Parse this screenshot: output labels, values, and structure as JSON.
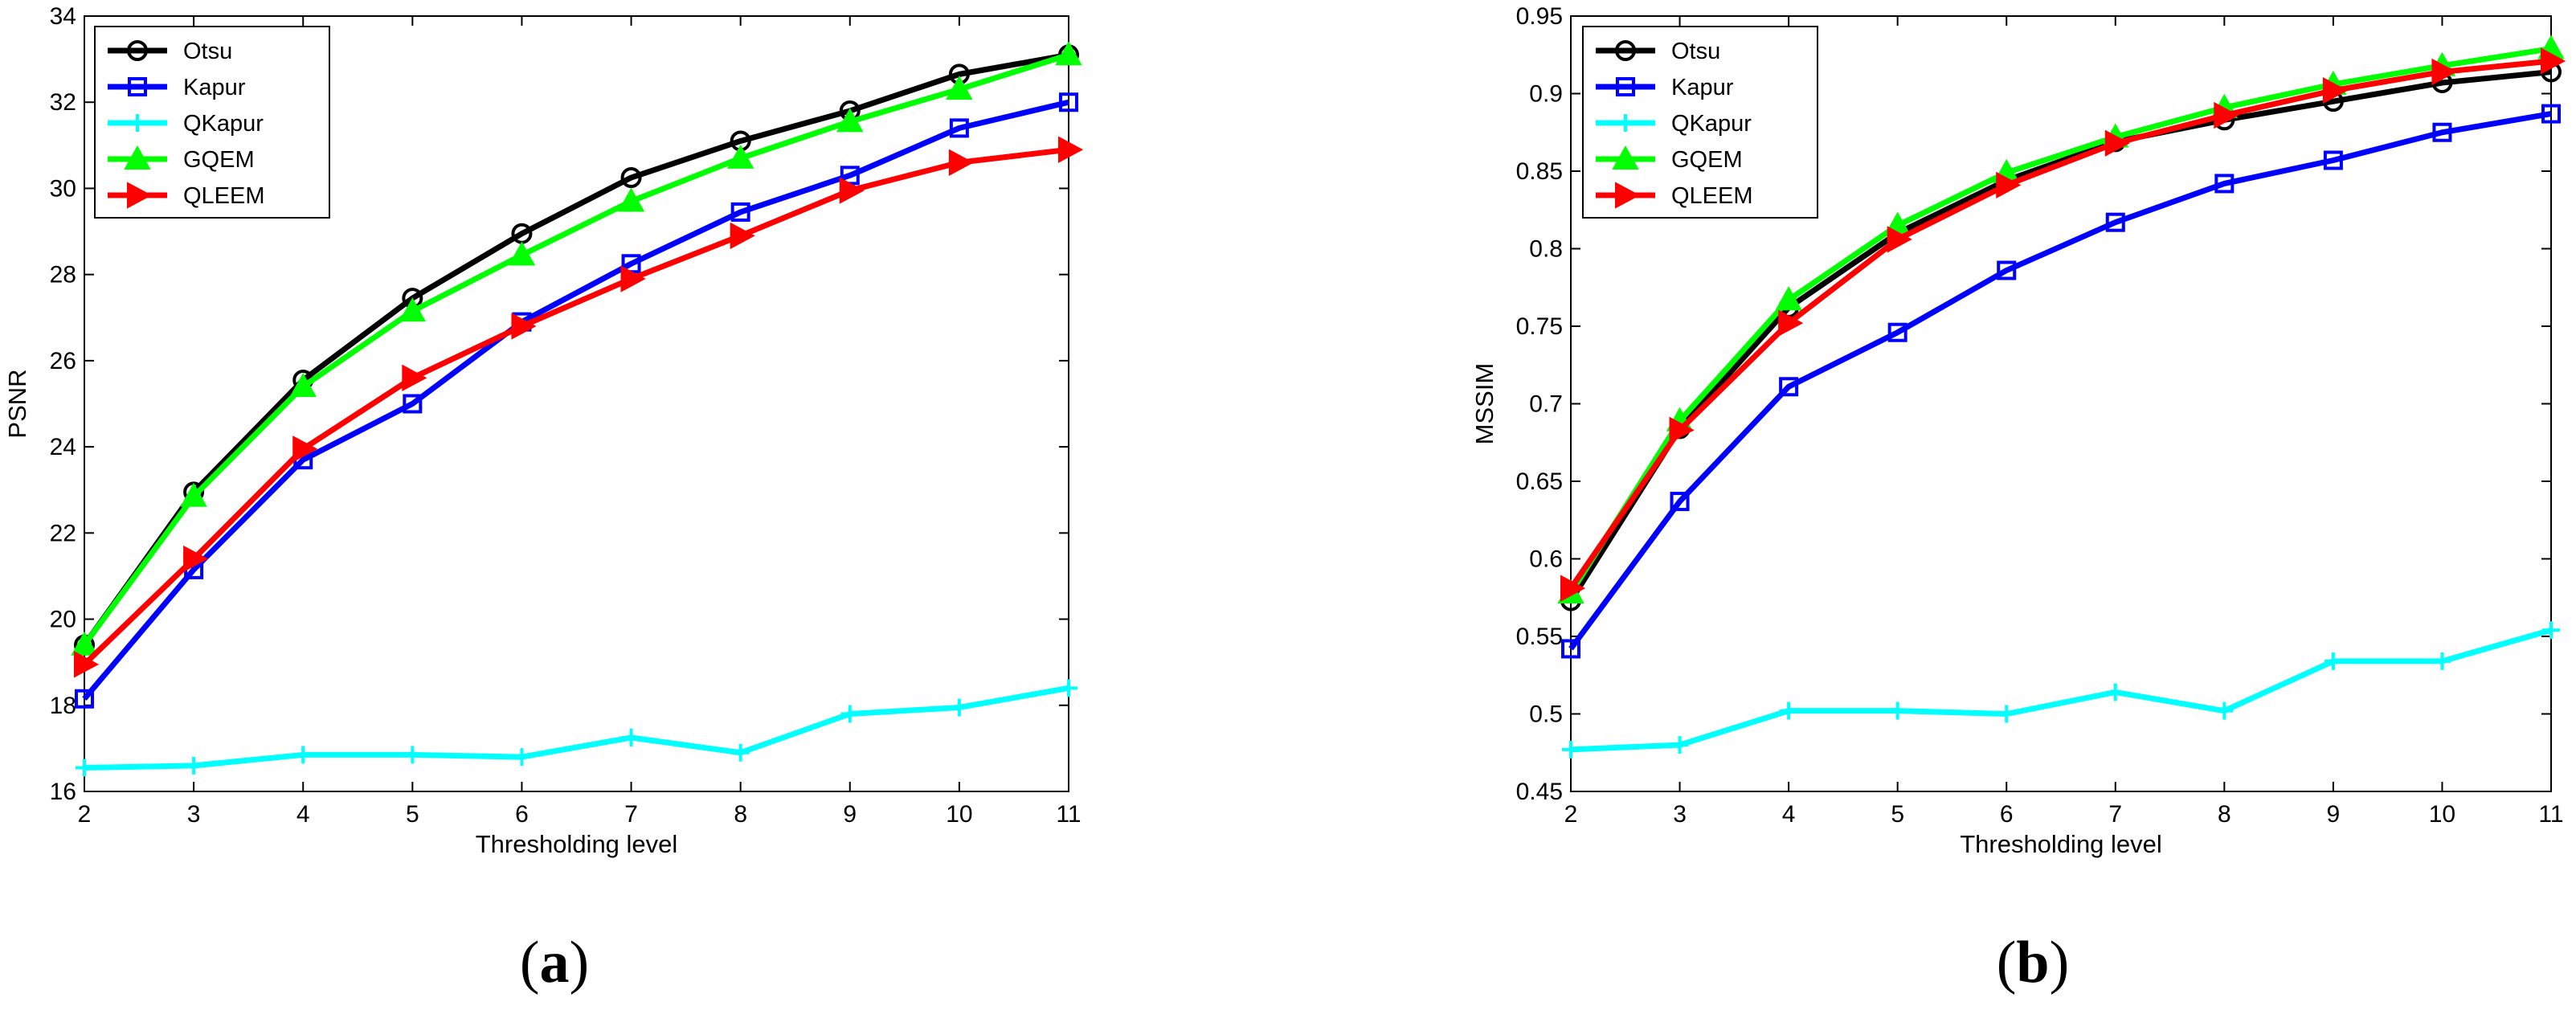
{
  "chart_data": [
    {
      "type": "line",
      "panel_label": "a",
      "xlabel": "Thresholding level",
      "ylabel": "PSNR",
      "x": [
        2,
        3,
        4,
        5,
        6,
        7,
        8,
        9,
        10,
        11
      ],
      "xlim": [
        2,
        11
      ],
      "ylim": [
        16,
        34
      ],
      "xticks": [
        "2",
        "3",
        "4",
        "5",
        "6",
        "7",
        "8",
        "9",
        "10",
        "11"
      ],
      "yticks": [
        "16",
        "18",
        "20",
        "22",
        "24",
        "26",
        "28",
        "30",
        "32",
        "34"
      ],
      "legend_position": "top-left",
      "series": [
        {
          "name": "Otsu",
          "color": "#000000",
          "marker": "circle",
          "values": [
            19.4,
            22.95,
            25.55,
            27.45,
            28.95,
            30.25,
            31.1,
            31.8,
            32.65,
            33.1
          ]
        },
        {
          "name": "Kapur",
          "color": "#0000ff",
          "marker": "square",
          "values": [
            18.15,
            21.15,
            23.7,
            25.0,
            26.9,
            28.25,
            29.45,
            30.3,
            31.4,
            32.0
          ]
        },
        {
          "name": "QKapur",
          "color": "#00ffff",
          "marker": "plus",
          "values": [
            16.55,
            16.6,
            16.85,
            16.85,
            16.8,
            17.25,
            16.9,
            17.8,
            17.95,
            18.4
          ]
        },
        {
          "name": "GQEM",
          "color": "#00ff00",
          "marker": "triangle-up",
          "values": [
            19.4,
            22.85,
            25.4,
            27.15,
            28.45,
            29.7,
            30.7,
            31.55,
            32.3,
            33.1
          ]
        },
        {
          "name": "QLEEM",
          "color": "#ff0000",
          "marker": "triangle-right",
          "values": [
            18.95,
            21.4,
            23.95,
            25.6,
            26.8,
            27.9,
            28.9,
            29.95,
            30.6,
            30.9
          ]
        }
      ]
    },
    {
      "type": "line",
      "panel_label": "b",
      "xlabel": "Thresholding level",
      "ylabel": "MSSIM",
      "x": [
        2,
        3,
        4,
        5,
        6,
        7,
        8,
        9,
        10,
        11
      ],
      "xlim": [
        2,
        11
      ],
      "ylim": [
        0.45,
        0.95
      ],
      "xticks": [
        "2",
        "3",
        "4",
        "5",
        "6",
        "7",
        "8",
        "9",
        "10",
        "11"
      ],
      "yticks": [
        "0.45",
        "0.5",
        "0.55",
        "0.6",
        "0.65",
        "0.7",
        "0.75",
        "0.8",
        "0.85",
        "0.9",
        "0.95"
      ],
      "legend_position": "top-left",
      "series": [
        {
          "name": "Otsu",
          "color": "#000000",
          "marker": "circle",
          "values": [
            0.573,
            0.684,
            0.762,
            0.81,
            0.844,
            0.869,
            0.883,
            0.895,
            0.907,
            0.914
          ]
        },
        {
          "name": "Kapur",
          "color": "#0000ff",
          "marker": "square",
          "values": [
            0.542,
            0.637,
            0.711,
            0.746,
            0.786,
            0.817,
            0.842,
            0.857,
            0.875,
            0.887
          ]
        },
        {
          "name": "QKapur",
          "color": "#00ffff",
          "marker": "plus",
          "values": [
            0.477,
            0.48,
            0.502,
            0.502,
            0.5,
            0.514,
            0.502,
            0.534,
            0.534,
            0.554
          ]
        },
        {
          "name": "GQEM",
          "color": "#00ff00",
          "marker": "triangle-up",
          "values": [
            0.578,
            0.689,
            0.767,
            0.815,
            0.849,
            0.872,
            0.891,
            0.906,
            0.918,
            0.929
          ]
        },
        {
          "name": "QLEEM",
          "color": "#ff0000",
          "marker": "triangle-right",
          "values": [
            0.581,
            0.683,
            0.752,
            0.806,
            0.841,
            0.868,
            0.886,
            0.902,
            0.914,
            0.921
          ]
        }
      ]
    }
  ]
}
